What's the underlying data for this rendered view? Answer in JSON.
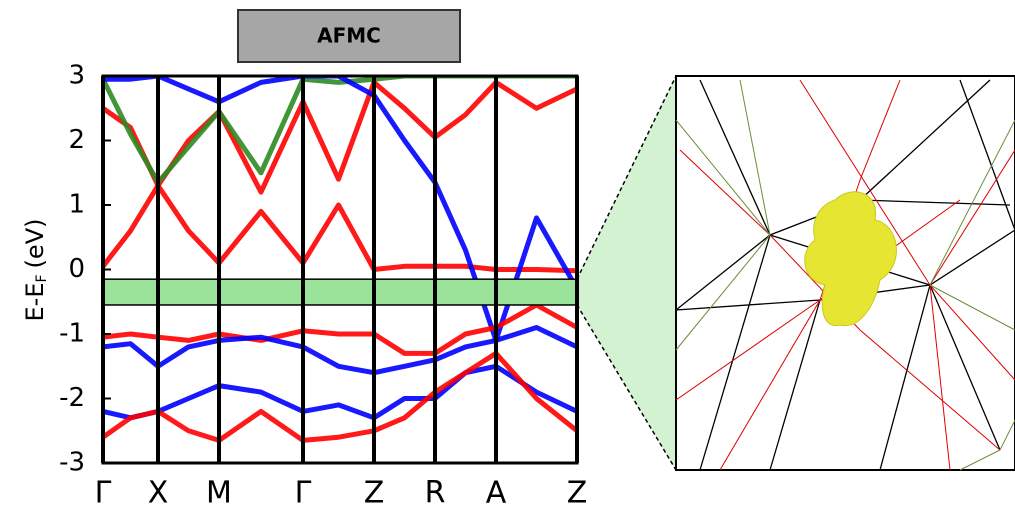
{
  "chart_data": {
    "type": "line",
    "title": "AFMC",
    "ylabel": {
      "main": "E-E",
      "sub": "F",
      "unit": "(eV)"
    },
    "xlim": [
      0,
      4.74
    ],
    "ylim": [
      -3,
      3
    ],
    "yticks": [
      -3,
      -2,
      -1,
      0,
      1,
      2,
      3
    ],
    "xticks": [
      {
        "value": 0,
        "label": "Γ"
      },
      {
        "value": 0.55,
        "label": "X"
      },
      {
        "value": 1.16,
        "label": "M"
      },
      {
        "value": 2.0,
        "label": "Γ"
      },
      {
        "value": 2.71,
        "label": "Z"
      },
      {
        "value": 3.32,
        "label": "R"
      },
      {
        "value": 3.93,
        "label": "A"
      },
      {
        "value": 4.74,
        "label": "Z"
      }
    ],
    "grid": true,
    "highlight_range": [
      -0.15,
      -0.55
    ],
    "highlight_color": "#9be39b",
    "x": [
      0,
      0.275,
      0.55,
      0.855,
      1.16,
      1.58,
      2.0,
      2.355,
      2.71,
      3.015,
      3.32,
      3.625,
      3.93,
      4.335,
      4.74
    ],
    "series": [
      {
        "color": "#ff0000",
        "values": [
          0.05,
          0.6,
          1.3,
          0.6,
          0.1,
          0.9,
          0.1,
          1.0,
          0.0,
          0.05,
          0.05,
          0.05,
          0.0,
          0.0,
          -0.02
        ]
      },
      {
        "color": "#ff0000",
        "values": [
          2.5,
          2.2,
          1.3,
          2.0,
          2.45,
          1.2,
          2.6,
          1.4,
          2.9,
          2.5,
          2.05,
          2.4,
          2.9,
          2.5,
          2.8
        ]
      },
      {
        "color": "#2e8b22",
        "values": [
          2.95,
          2.1,
          1.35,
          1.9,
          2.45,
          1.5,
          2.95,
          2.9,
          2.95,
          3.0,
          3.0,
          3.0,
          3.0,
          3.0,
          3.0
        ]
      },
      {
        "color": "#0000ff",
        "values": [
          2.95,
          2.95,
          3.0,
          2.8,
          2.6,
          2.9,
          3.0,
          3.0,
          2.7,
          2.0,
          1.35,
          0.3,
          -1.1,
          0.8,
          -0.3
        ]
      },
      {
        "color": "#ff0000",
        "values": [
          -1.05,
          -1.0,
          -1.05,
          -1.1,
          -1.0,
          -1.1,
          -0.95,
          -1.0,
          -1.0,
          -1.3,
          -1.3,
          -1.0,
          -0.9,
          -0.55,
          -0.9
        ]
      },
      {
        "color": "#0000ff",
        "values": [
          -1.2,
          -1.15,
          -1.5,
          -1.2,
          -1.1,
          -1.05,
          -1.2,
          -1.5,
          -1.6,
          -1.5,
          -1.4,
          -1.2,
          -1.1,
          -0.9,
          -1.2
        ]
      },
      {
        "color": "#0000ff",
        "values": [
          -2.2,
          -2.3,
          -2.2,
          -2.0,
          -1.8,
          -1.9,
          -2.2,
          -2.1,
          -2.3,
          -2.0,
          -2.0,
          -1.6,
          -1.5,
          -1.9,
          -2.2
        ]
      },
      {
        "color": "#ff0000",
        "values": [
          -2.6,
          -2.3,
          -2.2,
          -2.5,
          -2.65,
          -2.2,
          -2.65,
          -2.6,
          -2.5,
          -2.3,
          -1.9,
          -1.6,
          -1.3,
          -2.0,
          -2.5
        ]
      }
    ]
  }
}
